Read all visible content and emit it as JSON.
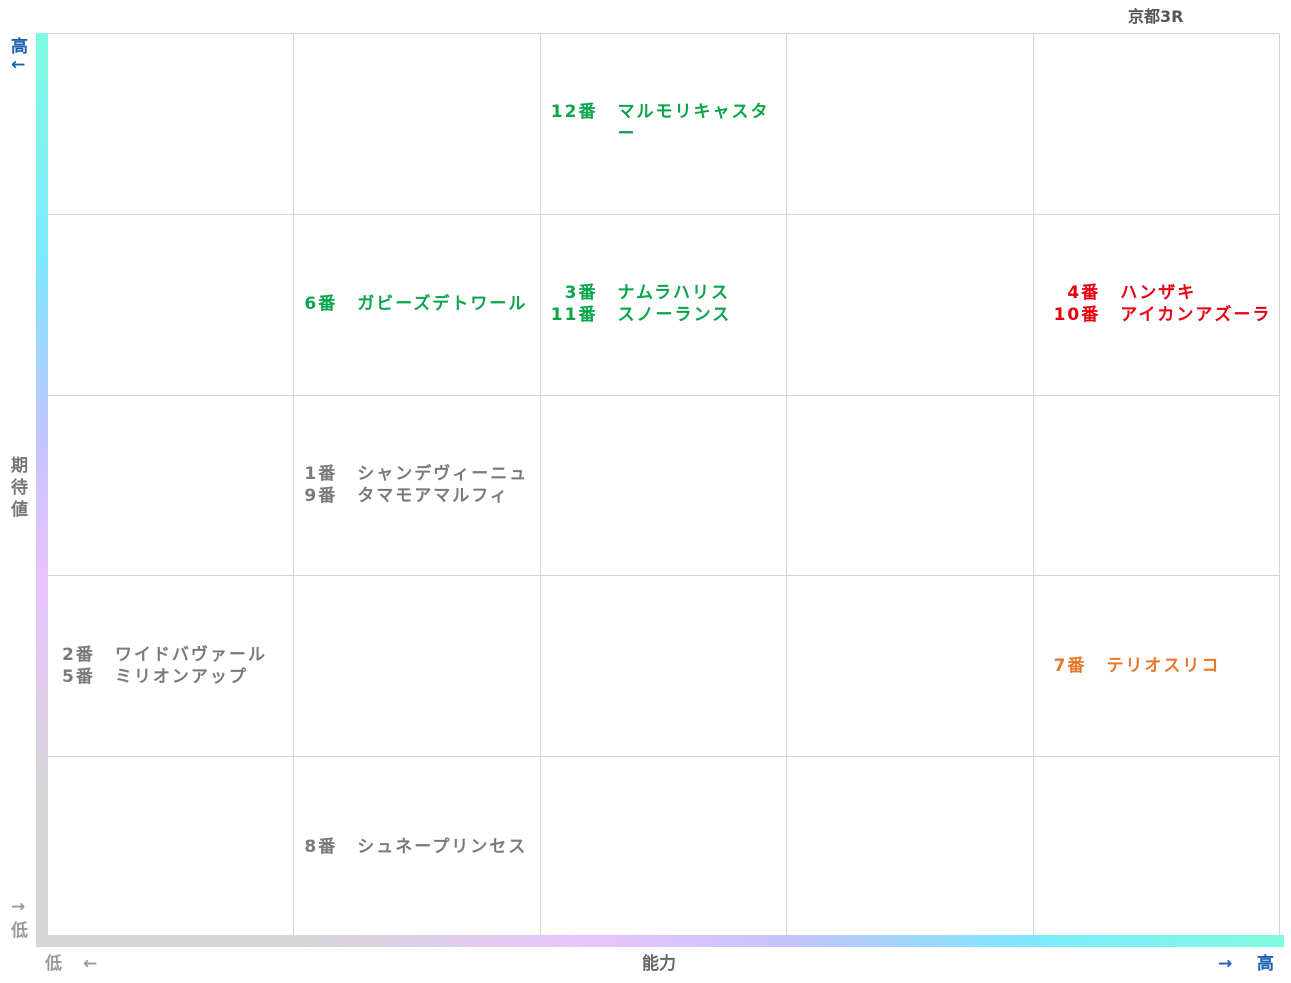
{
  "title": "京都3R",
  "colors": {
    "green": "#0aa44a",
    "red": "#e8000e",
    "orange": "#e8782a",
    "gray": "#7a7a7a",
    "axis_blue": "#1a5fb4"
  },
  "chart_data": {
    "type": "table",
    "title": "京都3R",
    "xlabel": "能力",
    "ylabel": "期待値",
    "x_low": "低",
    "x_high": "高",
    "x_low_arrow": "←",
    "x_high_arrow": "→",
    "y_low": "低",
    "y_high": "高",
    "y_low_arrow": "→",
    "y_high_arrow": "←",
    "columns": 5,
    "rows": 5,
    "grid": true,
    "cells": [
      {
        "row": 0,
        "col": 2,
        "color": "green",
        "entries": [
          {
            "num": "12番",
            "name": "マルモリキャスター"
          }
        ]
      },
      {
        "row": 1,
        "col": 1,
        "color": "green",
        "entries": [
          {
            "num": "6番",
            "name": "ガビーズデトワール"
          }
        ]
      },
      {
        "row": 1,
        "col": 2,
        "color": "green",
        "entries": [
          {
            "num": "3番",
            "name": "ナムラハリス"
          },
          {
            "num": "11番",
            "name": "スノーランス"
          }
        ]
      },
      {
        "row": 1,
        "col": 4,
        "color": "red",
        "entries": [
          {
            "num": "4番",
            "name": "ハンザキ"
          },
          {
            "num": "10番",
            "name": "アイカンアズーラ"
          }
        ]
      },
      {
        "row": 2,
        "col": 1,
        "color": "gray",
        "entries": [
          {
            "num": "1番",
            "name": "シャンデヴィーニュ"
          },
          {
            "num": "9番",
            "name": "タマモアマルフィ"
          }
        ]
      },
      {
        "row": 3,
        "col": 0,
        "color": "gray",
        "entries": [
          {
            "num": "2番",
            "name": "ワイドバヴァール"
          },
          {
            "num": "5番",
            "name": "ミリオンアップ"
          }
        ]
      },
      {
        "row": 3,
        "col": 4,
        "color": "orange",
        "entries": [
          {
            "num": "7番",
            "name": "テリオスリコ"
          }
        ]
      },
      {
        "row": 4,
        "col": 1,
        "color": "gray",
        "entries": [
          {
            "num": "8番",
            "name": "シュネープリンセス"
          }
        ]
      }
    ]
  }
}
